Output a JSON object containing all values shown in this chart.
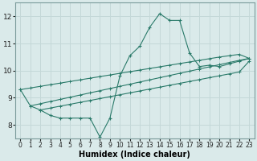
{
  "bg_color": "#daeaea",
  "grid_color": "#c4d8d8",
  "line_color": "#2a7a6a",
  "xlabel": "Humidex (Indice chaleur)",
  "xlim": [
    -0.5,
    23.5
  ],
  "ylim": [
    7.5,
    12.5
  ],
  "yticks": [
    8,
    9,
    10,
    11,
    12
  ],
  "xticks": [
    0,
    1,
    2,
    3,
    4,
    5,
    6,
    7,
    8,
    9,
    10,
    11,
    12,
    13,
    14,
    15,
    16,
    17,
    18,
    19,
    20,
    21,
    22,
    23
  ],
  "curve1_x": [
    0,
    1,
    2,
    3,
    4,
    5,
    6,
    7,
    8,
    9,
    10,
    11,
    12,
    13,
    14,
    15,
    16,
    17,
    18,
    19,
    20,
    21,
    22,
    23
  ],
  "curve1_y": [
    9.3,
    8.7,
    8.55,
    8.35,
    8.25,
    8.25,
    8.25,
    8.25,
    7.55,
    8.25,
    9.8,
    10.55,
    10.9,
    11.6,
    12.1,
    11.85,
    11.85,
    10.65,
    10.15,
    10.2,
    10.15,
    10.25,
    10.35,
    10.45
  ],
  "line2_x": [
    0,
    1,
    2,
    3,
    4,
    5,
    6,
    7,
    8,
    9,
    10,
    11,
    12,
    13,
    14,
    15,
    16,
    17,
    18,
    19,
    20,
    21,
    22,
    23
  ],
  "line2_y": [
    9.3,
    9.36,
    9.42,
    9.48,
    9.54,
    9.6,
    9.66,
    9.72,
    9.78,
    9.84,
    9.9,
    9.96,
    10.02,
    10.08,
    10.14,
    10.2,
    10.26,
    10.32,
    10.38,
    10.44,
    10.5,
    10.55,
    10.6,
    10.45
  ],
  "line3_x": [
    1,
    2,
    3,
    4,
    5,
    6,
    7,
    8,
    9,
    10,
    11,
    12,
    13,
    14,
    15,
    16,
    17,
    18,
    19,
    20,
    21,
    22,
    23
  ],
  "line3_y": [
    8.7,
    8.78,
    8.86,
    8.94,
    9.02,
    9.1,
    9.18,
    9.26,
    9.34,
    9.42,
    9.5,
    9.58,
    9.66,
    9.74,
    9.82,
    9.9,
    9.98,
    10.06,
    10.14,
    10.22,
    10.3,
    10.38,
    10.45
  ],
  "line4_x": [
    2,
    3,
    4,
    5,
    6,
    7,
    8,
    9,
    10,
    11,
    12,
    13,
    14,
    15,
    16,
    17,
    18,
    19,
    20,
    21,
    22,
    23
  ],
  "line4_y": [
    8.55,
    8.62,
    8.69,
    8.76,
    8.83,
    8.9,
    8.97,
    9.04,
    9.11,
    9.18,
    9.25,
    9.32,
    9.39,
    9.46,
    9.53,
    9.6,
    9.67,
    9.74,
    9.81,
    9.88,
    9.95,
    10.35
  ],
  "figwidth": 3.2,
  "figheight": 2.0,
  "dpi": 100
}
